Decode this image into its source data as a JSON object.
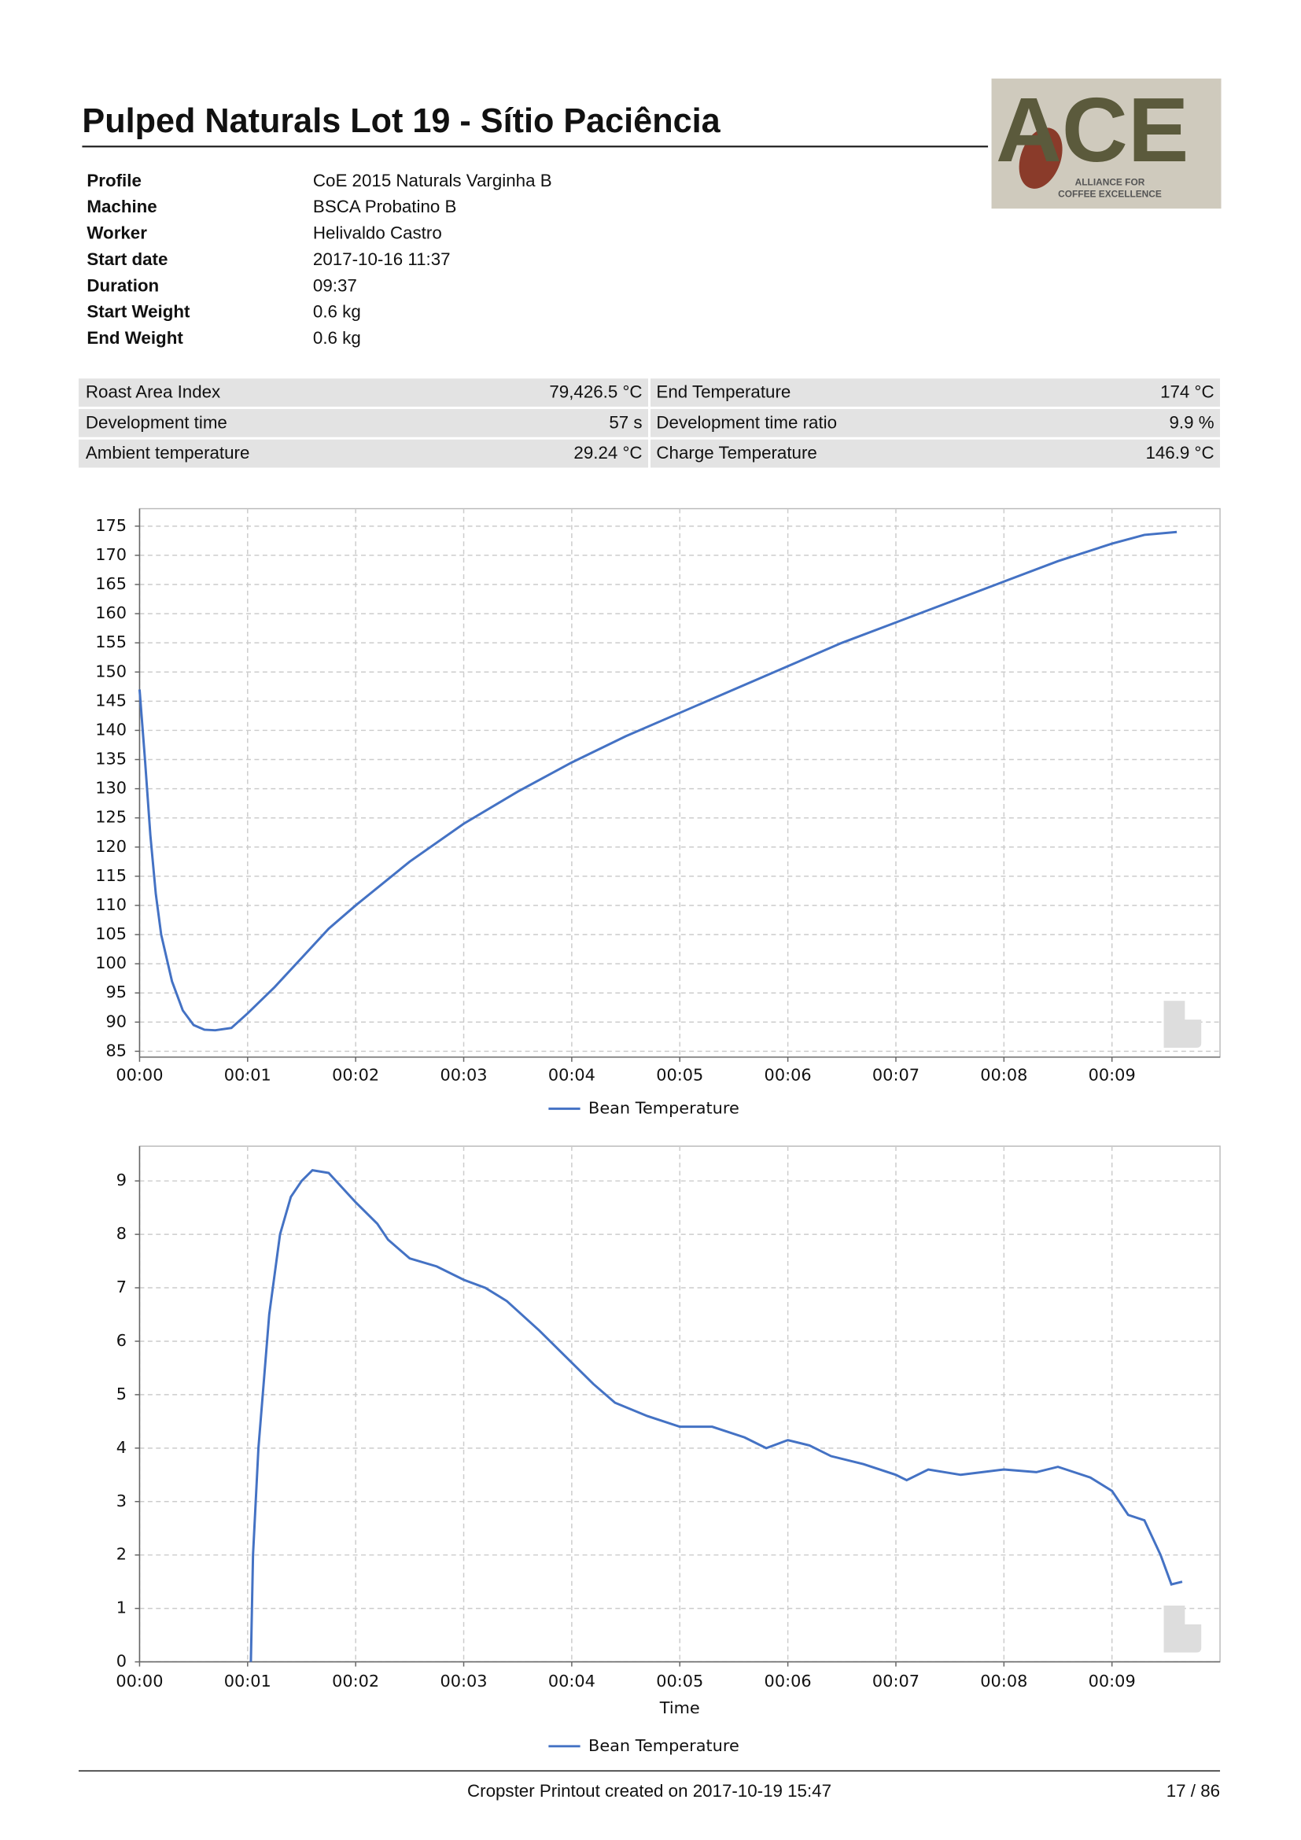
{
  "title": "Pulped Naturals Lot 19 - Sítio Paciência",
  "logo": {
    "text": "ACE",
    "line_1": "ALLIANCE FOR",
    "line_2": "COFFEE EXCELLENCE"
  },
  "profile": {
    "rows": [
      [
        "Profile",
        "CoE 2015 Naturals Varginha B"
      ],
      [
        "Machine",
        "BSCA Probatino B"
      ],
      [
        "Worker",
        "Helivaldo Castro"
      ],
      [
        "Start date",
        "2017-10-16 11:37"
      ],
      [
        "Duration",
        "09:37"
      ],
      [
        "Start Weight",
        "0.6 kg"
      ],
      [
        "End Weight",
        "0.6 kg"
      ]
    ]
  },
  "stats": {
    "rows": [
      [
        "Roast Area Index",
        "79,426.5 °C",
        "End Temperature",
        "174 °C"
      ],
      [
        "Development time",
        "57 s",
        "Development time ratio",
        "9.9 %"
      ],
      [
        "Ambient temperature",
        "29.24 °C",
        "Charge Temperature",
        "146.9 °C"
      ]
    ]
  },
  "chart_data": [
    {
      "type": "line",
      "x": [
        0,
        0.05,
        0.1,
        0.15,
        0.2,
        0.3,
        0.4,
        0.5,
        0.6,
        0.7,
        0.85,
        1.0,
        1.25,
        1.5,
        1.75,
        2,
        2.5,
        3,
        3.5,
        4,
        4.5,
        5,
        5.5,
        6,
        6.5,
        7,
        7.5,
        8,
        8.5,
        9,
        9.3,
        9.6
      ],
      "series": [
        {
          "name": "Bean Temperature",
          "color": "#4472c4",
          "values": [
            147,
            135,
            122,
            112,
            105,
            97,
            92,
            89.5,
            88.7,
            88.6,
            89,
            91.5,
            96,
            101,
            106,
            110,
            117.5,
            124,
            129.5,
            134.5,
            139,
            143,
            147,
            151,
            155,
            158.5,
            162,
            165.5,
            169,
            172,
            173.5,
            174
          ]
        }
      ],
      "xlim": [
        0,
        10
      ],
      "xticks": [
        {
          "value": 0,
          "label": "00:00"
        },
        {
          "value": 1,
          "label": "00:01"
        },
        {
          "value": 2,
          "label": "00:02"
        },
        {
          "value": 3,
          "label": "00:03"
        },
        {
          "value": 4,
          "label": "00:04"
        },
        {
          "value": 5,
          "label": "00:05"
        },
        {
          "value": 6,
          "label": "00:06"
        },
        {
          "value": 7,
          "label": "00:07"
        },
        {
          "value": 8,
          "label": "00:08"
        },
        {
          "value": 9,
          "label": "00:09"
        }
      ],
      "ylim": [
        84,
        178
      ],
      "yticks": [
        85,
        90,
        95,
        100,
        105,
        110,
        115,
        120,
        125,
        130,
        135,
        140,
        145,
        150,
        155,
        160,
        165,
        170,
        175
      ],
      "grid": true,
      "legend": "bottom"
    },
    {
      "type": "line",
      "x": [
        1.03,
        1.05,
        1.1,
        1.2,
        1.3,
        1.4,
        1.5,
        1.6,
        1.75,
        2,
        2.2,
        2.3,
        2.5,
        2.75,
        3,
        3.2,
        3.4,
        3.7,
        4,
        4.2,
        4.4,
        4.7,
        5,
        5.3,
        5.6,
        5.8,
        6,
        6.2,
        6.4,
        6.7,
        7,
        7.1,
        7.3,
        7.6,
        8,
        8.3,
        8.5,
        8.8,
        9,
        9.15,
        9.3,
        9.45,
        9.55,
        9.65
      ],
      "series": [
        {
          "name": "Bean Temperature",
          "color": "#4472c4",
          "values": [
            0,
            2,
            4,
            6.5,
            8,
            8.7,
            9.0,
            9.2,
            9.15,
            8.6,
            8.2,
            7.9,
            7.55,
            7.4,
            7.15,
            7.0,
            6.75,
            6.2,
            5.6,
            5.2,
            4.85,
            4.6,
            4.4,
            4.4,
            4.2,
            4.0,
            4.15,
            4.05,
            3.85,
            3.7,
            3.5,
            3.4,
            3.6,
            3.5,
            3.6,
            3.55,
            3.65,
            3.45,
            3.2,
            2.75,
            2.65,
            2.0,
            1.45,
            1.5
          ]
        }
      ],
      "xlim": [
        0,
        10
      ],
      "xticks": [
        {
          "value": 0,
          "label": "00:00"
        },
        {
          "value": 1,
          "label": "00:01"
        },
        {
          "value": 2,
          "label": "00:02"
        },
        {
          "value": 3,
          "label": "00:03"
        },
        {
          "value": 4,
          "label": "00:04"
        },
        {
          "value": 5,
          "label": "00:05"
        },
        {
          "value": 6,
          "label": "00:06"
        },
        {
          "value": 7,
          "label": "00:07"
        },
        {
          "value": 8,
          "label": "00:08"
        },
        {
          "value": 9,
          "label": "00:09"
        }
      ],
      "xlabel": "Time",
      "ylim": [
        0,
        9.65
      ],
      "yticks": [
        0,
        1,
        2,
        3,
        4,
        5,
        6,
        7,
        8,
        9
      ],
      "grid": true,
      "legend": "bottom"
    }
  ],
  "footer": {
    "text": "Cropster Printout created on 2017-10-19 15:47",
    "page": "17 / 86"
  }
}
